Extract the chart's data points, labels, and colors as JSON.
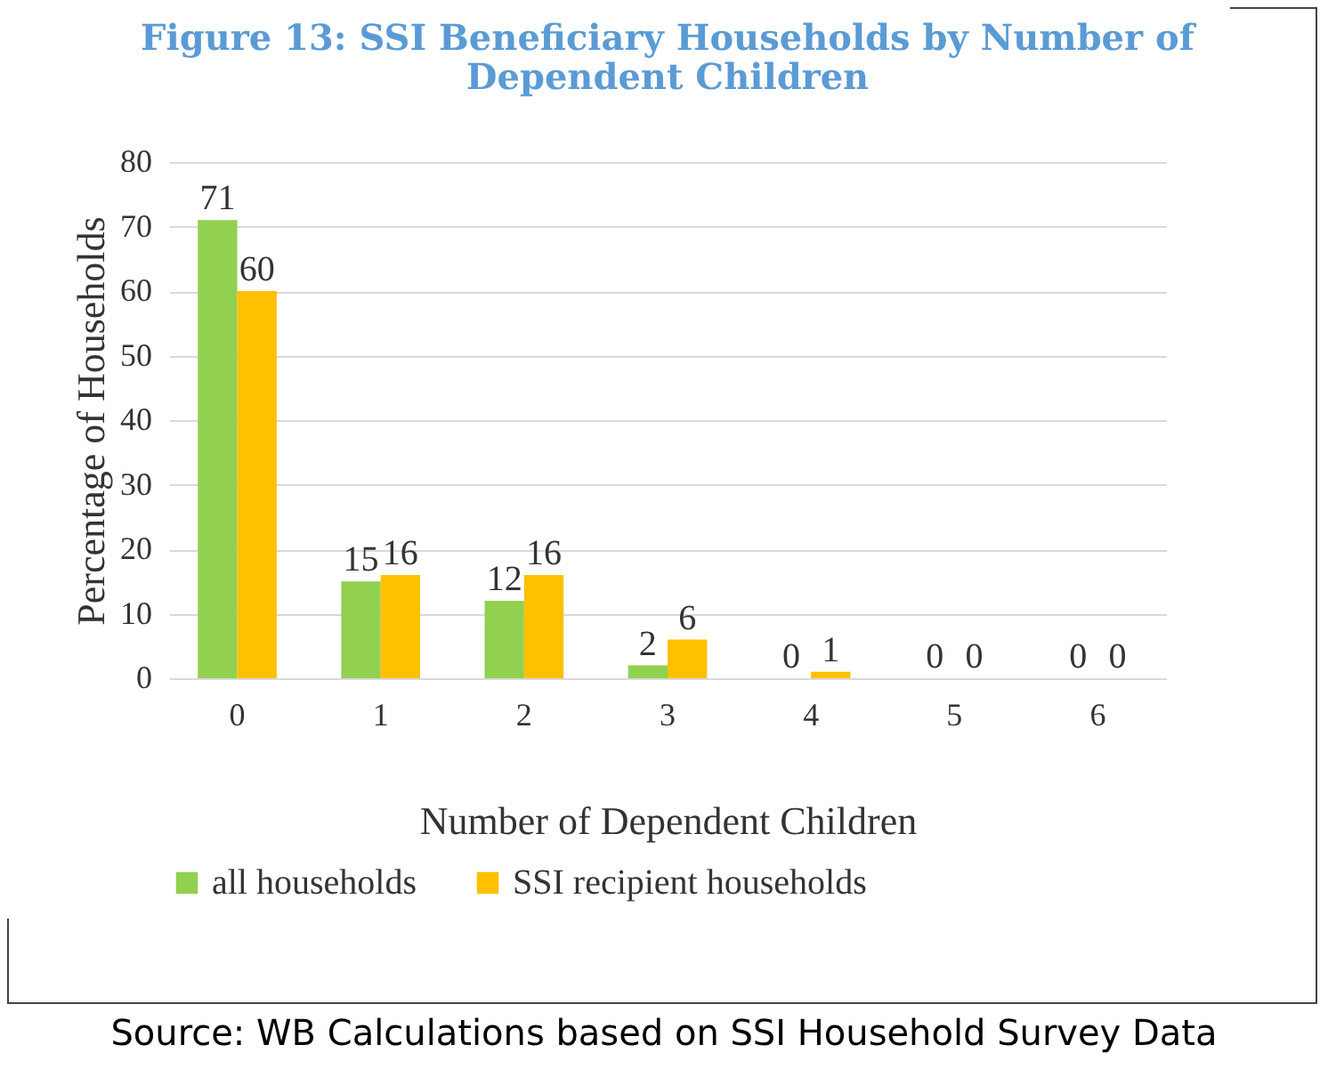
{
  "chart_data": {
    "type": "bar",
    "title": "Figure 13: SSI Beneficiary Households by Number of Dependent Children",
    "xlabel": "Number of Dependent Children",
    "ylabel": "Percentage of Households",
    "categories": [
      "0",
      "1",
      "2",
      "3",
      "4",
      "5",
      "6"
    ],
    "series": [
      {
        "name": "all households",
        "color": "#92d050",
        "values": [
          71,
          15,
          12,
          2,
          0,
          0,
          0
        ]
      },
      {
        "name": "SSI recipient households",
        "color": "#ffc000",
        "values": [
          60,
          16,
          16,
          6,
          1,
          0,
          0
        ]
      }
    ],
    "ylim": [
      0,
      80
    ],
    "yticks": [
      0,
      10,
      20,
      30,
      40,
      50,
      60,
      70,
      80
    ],
    "grid": "y",
    "legend": "bottom",
    "data_labels": true,
    "annotations": [
      "Source: WB Calculations based on SSI Household Survey Data"
    ]
  }
}
